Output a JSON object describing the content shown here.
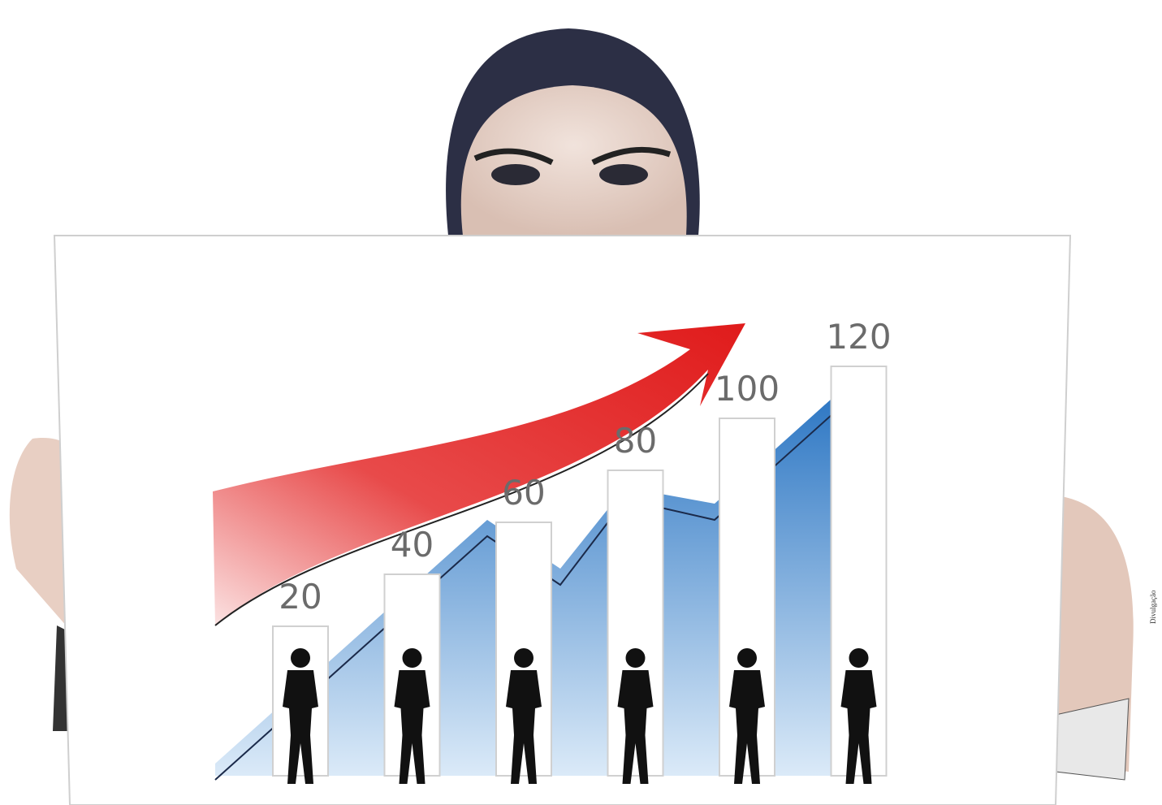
{
  "chart_data": {
    "type": "bar",
    "values": [
      20,
      40,
      60,
      80,
      100,
      120
    ],
    "color": "#ffffff"
  },
  "credit": "Divulgação"
}
